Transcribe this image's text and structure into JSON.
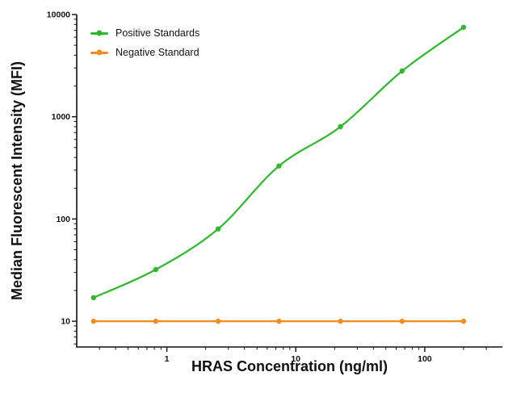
{
  "figure": {
    "background": "#ffffff"
  },
  "chart_data": {
    "type": "line",
    "title": "",
    "xlabel": "HRAS Concentration (ng/ml)",
    "ylabel": "Median Fluorescent Intensity (MFI)",
    "x_scale": "log",
    "y_scale": "log",
    "xlim": [
      0.2,
      400
    ],
    "ylim": [
      5.6,
      10000
    ],
    "x_ticks": [
      1,
      10,
      100
    ],
    "y_ticks": [
      10,
      100,
      1000,
      10000
    ],
    "grid": false,
    "legend_position": "top-left",
    "axis_color": "#111111",
    "series": [
      {
        "name": "Positive Standards",
        "color": "#2db92d",
        "marker": "circle",
        "smooth": true,
        "x": [
          0.27,
          0.82,
          2.5,
          7.4,
          22.2,
          66.7,
          200
        ],
        "y": [
          17,
          32,
          80,
          330,
          800,
          2800,
          7500
        ]
      },
      {
        "name": "Negative Standard",
        "color": "#f68b1f",
        "marker": "circle",
        "smooth": false,
        "x": [
          0.27,
          0.82,
          2.5,
          7.4,
          22.2,
          66.7,
          200
        ],
        "y": [
          10,
          10,
          10,
          10,
          10,
          10,
          10
        ]
      }
    ]
  }
}
